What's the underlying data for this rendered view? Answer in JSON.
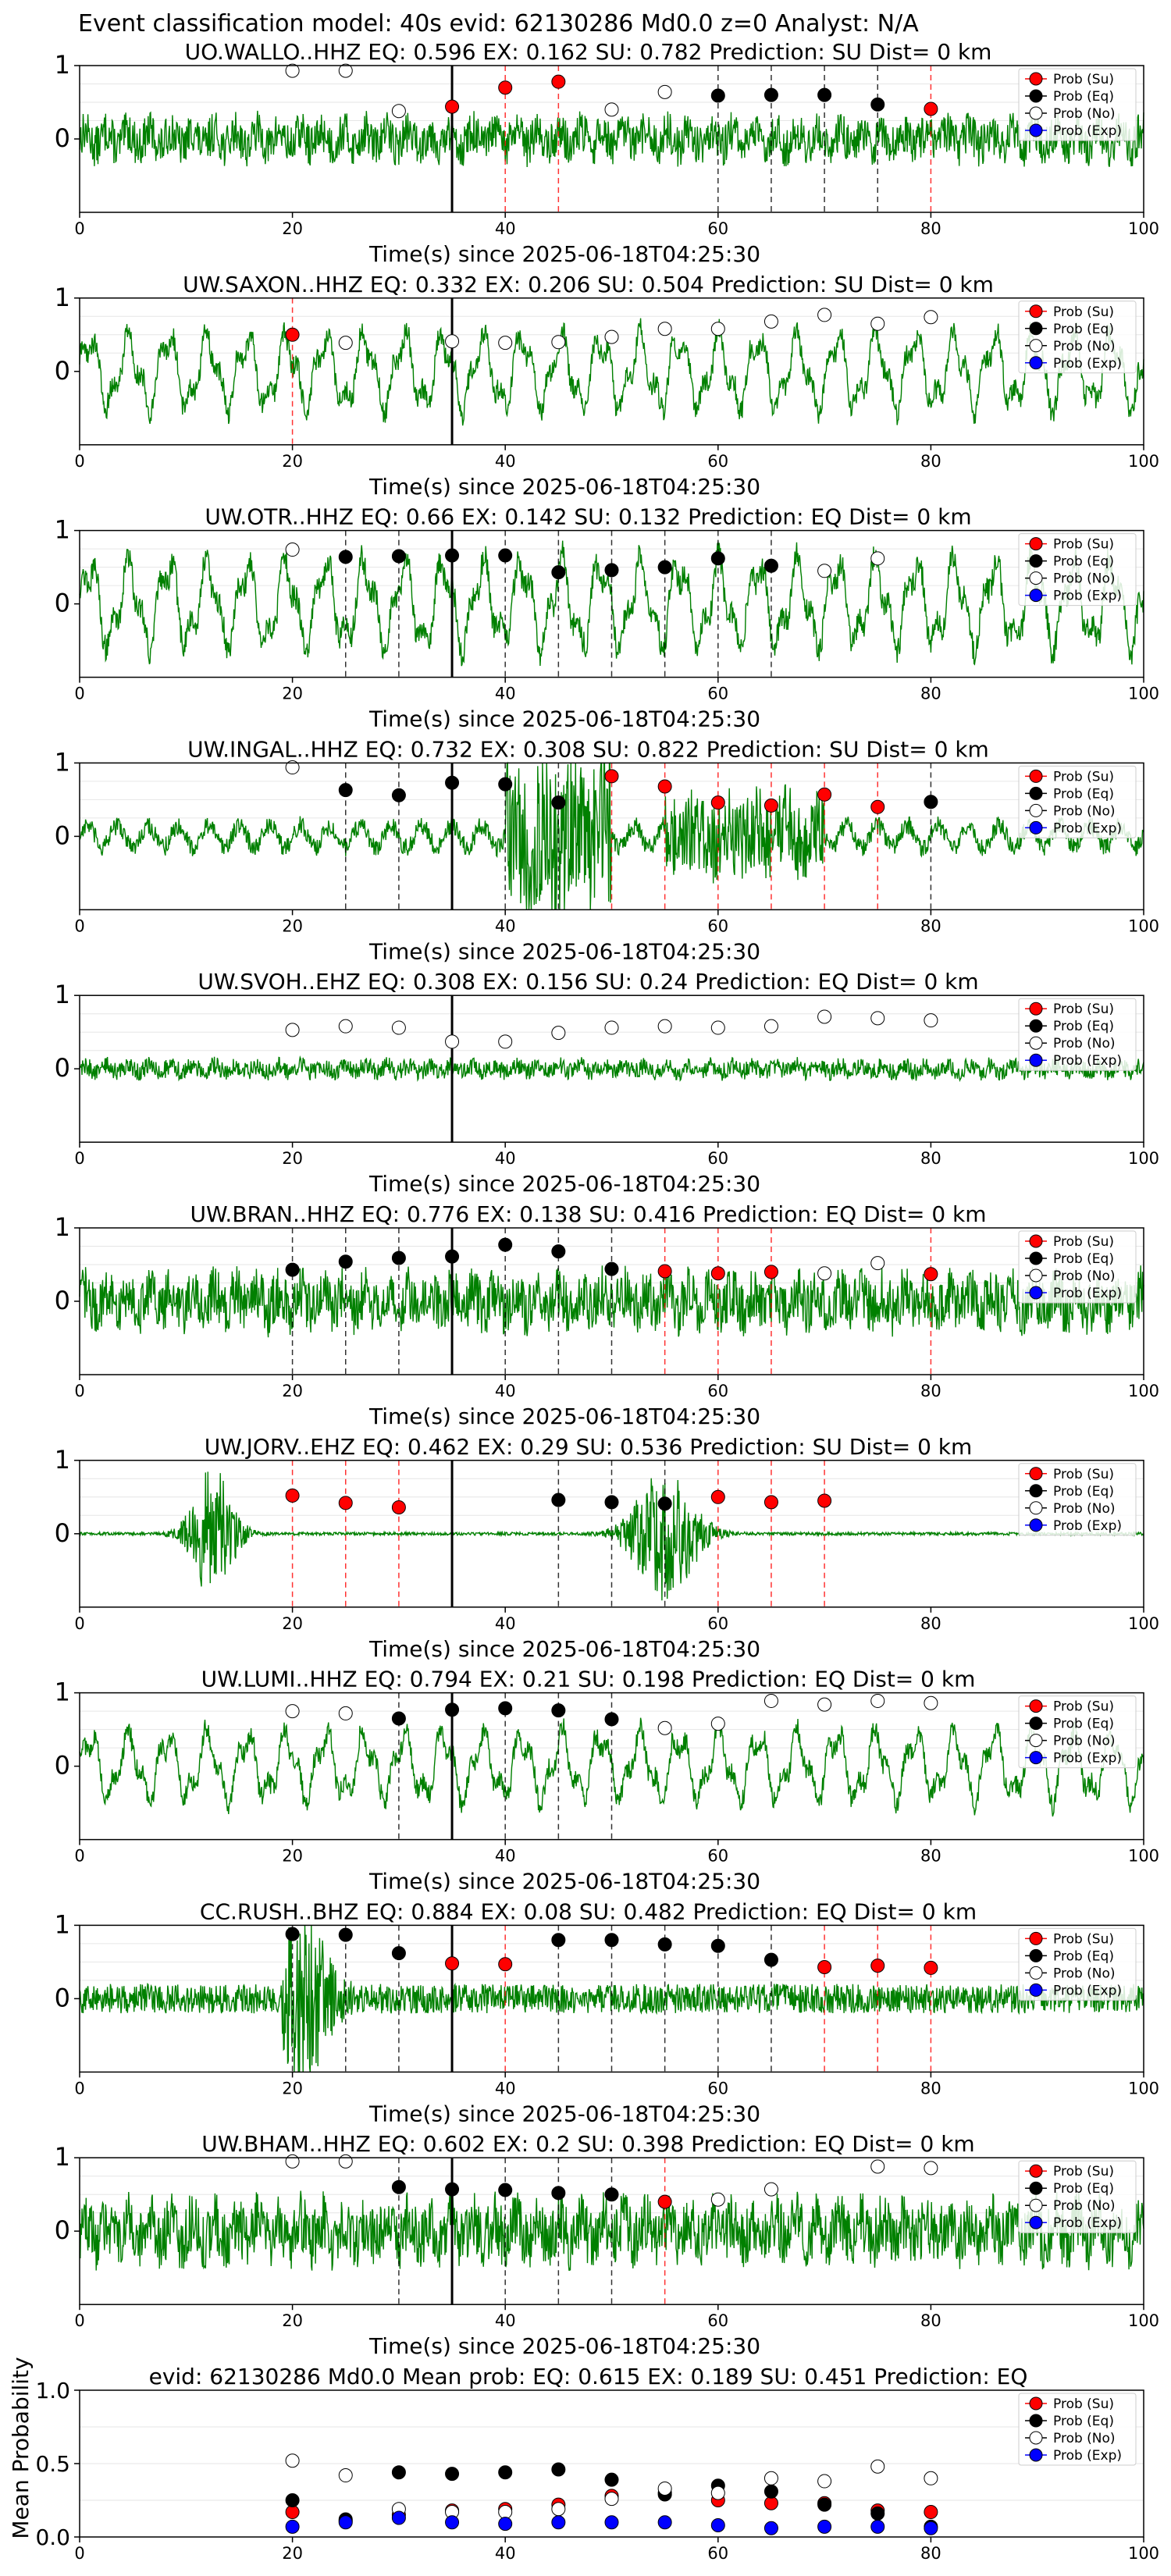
{
  "figure_title": "Event classification model: 40s evid: 62130286 Md0.0 z=0 Analyst: N/A",
  "legend": [
    "Prob (Su)",
    "Prob (Eq)",
    "Prob (No)",
    "Prob (Exp)"
  ],
  "colors": {
    "su": "#ff0000",
    "eq": "#000000",
    "no": "#ffffff",
    "exp": "#0000ff",
    "trace": "#008000",
    "arrival": "#000000"
  },
  "chart_data": [
    {
      "type": "scatter",
      "title": "UO.WALLO..HHZ   EQ: 0.596  EX: 0.162  SU: 0.782   Prediction: SU    Dist= 0 km",
      "xlabel": "Time(s) since 2025-06-18T04:25:30",
      "ylabel": "",
      "xlim": [
        0,
        100
      ],
      "ylim": [
        -1,
        1
      ],
      "xticks": [
        "0",
        "20",
        "40",
        "60",
        "80",
        "100"
      ],
      "yticks": [
        "1",
        "0"
      ],
      "arrival": 35,
      "points": [
        {
          "x": 20,
          "y": 0.93,
          "cls": "no"
        },
        {
          "x": 25,
          "y": 0.93,
          "cls": "no"
        },
        {
          "x": 30,
          "y": 0.38,
          "cls": "no"
        },
        {
          "x": 35,
          "y": 0.44,
          "cls": "su"
        },
        {
          "x": 40,
          "y": 0.7,
          "cls": "su"
        },
        {
          "x": 45,
          "y": 0.78,
          "cls": "su"
        },
        {
          "x": 50,
          "y": 0.4,
          "cls": "no"
        },
        {
          "x": 55,
          "y": 0.64,
          "cls": "no"
        },
        {
          "x": 60,
          "y": 0.59,
          "cls": "eq"
        },
        {
          "x": 65,
          "y": 0.6,
          "cls": "eq"
        },
        {
          "x": 70,
          "y": 0.6,
          "cls": "eq"
        },
        {
          "x": 75,
          "y": 0.47,
          "cls": "eq"
        },
        {
          "x": 80,
          "y": 0.41,
          "cls": "su"
        }
      ],
      "trace": {
        "style": "noise",
        "amplitude": 0.35
      }
    },
    {
      "type": "scatter",
      "title": "UW.SAXON..HHZ   EQ: 0.332  EX: 0.206  SU: 0.504   Prediction: SU    Dist= 0 km",
      "xlabel": "Time(s) since 2025-06-18T04:25:30",
      "ylabel": "",
      "xlim": [
        0,
        100
      ],
      "ylim": [
        -1,
        1
      ],
      "xticks": [
        "0",
        "20",
        "40",
        "60",
        "80",
        "100"
      ],
      "yticks": [
        "1",
        "0"
      ],
      "arrival": 35,
      "points": [
        {
          "x": 20,
          "y": 0.5,
          "cls": "su"
        },
        {
          "x": 25,
          "y": 0.39,
          "cls": "no"
        },
        {
          "x": 35,
          "y": 0.41,
          "cls": "no"
        },
        {
          "x": 40,
          "y": 0.39,
          "cls": "no"
        },
        {
          "x": 45,
          "y": 0.4,
          "cls": "no"
        },
        {
          "x": 50,
          "y": 0.47,
          "cls": "no"
        },
        {
          "x": 55,
          "y": 0.58,
          "cls": "no"
        },
        {
          "x": 60,
          "y": 0.58,
          "cls": "no"
        },
        {
          "x": 65,
          "y": 0.68,
          "cls": "no"
        },
        {
          "x": 70,
          "y": 0.77,
          "cls": "no"
        },
        {
          "x": 75,
          "y": 0.65,
          "cls": "no"
        },
        {
          "x": 80,
          "y": 0.74,
          "cls": "no"
        }
      ],
      "trace": {
        "style": "wave",
        "amplitude": 0.6
      }
    },
    {
      "type": "scatter",
      "title": "UW.OTR..HHZ   EQ: 0.66  EX: 0.142  SU: 0.132   Prediction: EQ    Dist= 0 km",
      "xlabel": "Time(s) since 2025-06-18T04:25:30",
      "ylabel": "",
      "xlim": [
        0,
        100
      ],
      "ylim": [
        -1,
        1
      ],
      "xticks": [
        "0",
        "20",
        "40",
        "60",
        "80",
        "100"
      ],
      "yticks": [
        "1",
        "0"
      ],
      "arrival": 35,
      "points": [
        {
          "x": 20,
          "y": 0.74,
          "cls": "no"
        },
        {
          "x": 25,
          "y": 0.64,
          "cls": "eq"
        },
        {
          "x": 30,
          "y": 0.65,
          "cls": "eq"
        },
        {
          "x": 35,
          "y": 0.66,
          "cls": "eq"
        },
        {
          "x": 40,
          "y": 0.66,
          "cls": "eq"
        },
        {
          "x": 45,
          "y": 0.43,
          "cls": "eq"
        },
        {
          "x": 50,
          "y": 0.46,
          "cls": "eq"
        },
        {
          "x": 55,
          "y": 0.5,
          "cls": "eq"
        },
        {
          "x": 60,
          "y": 0.62,
          "cls": "eq"
        },
        {
          "x": 65,
          "y": 0.52,
          "cls": "eq"
        },
        {
          "x": 70,
          "y": 0.45,
          "cls": "no"
        },
        {
          "x": 75,
          "y": 0.62,
          "cls": "no"
        }
      ],
      "trace": {
        "style": "wave",
        "amplitude": 0.7
      }
    },
    {
      "type": "scatter",
      "title": "UW.INGAL..HHZ   EQ: 0.732  EX: 0.308  SU: 0.822   Prediction: SU    Dist= 0 km",
      "xlabel": "Time(s) since 2025-06-18T04:25:30",
      "ylabel": "",
      "xlim": [
        0,
        100
      ],
      "ylim": [
        -1,
        1
      ],
      "xticks": [
        "0",
        "20",
        "40",
        "60",
        "80",
        "100"
      ],
      "yticks": [
        "1",
        "0"
      ],
      "arrival": 35,
      "points": [
        {
          "x": 20,
          "y": 0.94,
          "cls": "no"
        },
        {
          "x": 25,
          "y": 0.63,
          "cls": "eq"
        },
        {
          "x": 30,
          "y": 0.56,
          "cls": "eq"
        },
        {
          "x": 35,
          "y": 0.73,
          "cls": "eq"
        },
        {
          "x": 40,
          "y": 0.71,
          "cls": "eq"
        },
        {
          "x": 45,
          "y": 0.46,
          "cls": "eq"
        },
        {
          "x": 50,
          "y": 0.82,
          "cls": "su"
        },
        {
          "x": 55,
          "y": 0.68,
          "cls": "su"
        },
        {
          "x": 60,
          "y": 0.46,
          "cls": "su"
        },
        {
          "x": 65,
          "y": 0.42,
          "cls": "su"
        },
        {
          "x": 70,
          "y": 0.57,
          "cls": "su"
        },
        {
          "x": 75,
          "y": 0.4,
          "cls": "su"
        },
        {
          "x": 80,
          "y": 0.47,
          "cls": "eq"
        }
      ],
      "trace": {
        "style": "bursts",
        "amplitude": 0.25
      }
    },
    {
      "type": "scatter",
      "title": "UW.SVOH..EHZ   EQ: 0.308  EX: 0.156  SU: 0.24   Prediction: EQ    Dist= 0 km",
      "xlabel": "Time(s) since 2025-06-18T04:25:30",
      "ylabel": "",
      "xlim": [
        0,
        100
      ],
      "ylim": [
        -1,
        1
      ],
      "xticks": [
        "0",
        "20",
        "40",
        "60",
        "80",
        "100"
      ],
      "yticks": [
        "1",
        "0"
      ],
      "arrival": 35,
      "points": [
        {
          "x": 20,
          "y": 0.53,
          "cls": "no"
        },
        {
          "x": 25,
          "y": 0.58,
          "cls": "no"
        },
        {
          "x": 30,
          "y": 0.56,
          "cls": "no"
        },
        {
          "x": 35,
          "y": 0.37,
          "cls": "no"
        },
        {
          "x": 40,
          "y": 0.37,
          "cls": "no"
        },
        {
          "x": 45,
          "y": 0.49,
          "cls": "no"
        },
        {
          "x": 50,
          "y": 0.56,
          "cls": "no"
        },
        {
          "x": 55,
          "y": 0.58,
          "cls": "no"
        },
        {
          "x": 60,
          "y": 0.56,
          "cls": "no"
        },
        {
          "x": 65,
          "y": 0.58,
          "cls": "no"
        },
        {
          "x": 70,
          "y": 0.71,
          "cls": "no"
        },
        {
          "x": 75,
          "y": 0.69,
          "cls": "no"
        },
        {
          "x": 80,
          "y": 0.66,
          "cls": "no"
        }
      ],
      "trace": {
        "style": "noise",
        "amplitude": 0.15
      }
    },
    {
      "type": "scatter",
      "title": "UW.BRAN..HHZ   EQ: 0.776  EX: 0.138  SU: 0.416   Prediction: EQ    Dist= 0 km",
      "xlabel": "Time(s) since 2025-06-18T04:25:30",
      "ylabel": "",
      "xlim": [
        0,
        100
      ],
      "ylim": [
        -1,
        1
      ],
      "xticks": [
        "0",
        "20",
        "40",
        "60",
        "80",
        "100"
      ],
      "yticks": [
        "1",
        "0"
      ],
      "arrival": 35,
      "points": [
        {
          "x": 20,
          "y": 0.43,
          "cls": "eq"
        },
        {
          "x": 25,
          "y": 0.54,
          "cls": "eq"
        },
        {
          "x": 30,
          "y": 0.59,
          "cls": "eq"
        },
        {
          "x": 35,
          "y": 0.61,
          "cls": "eq"
        },
        {
          "x": 40,
          "y": 0.77,
          "cls": "eq"
        },
        {
          "x": 45,
          "y": 0.68,
          "cls": "eq"
        },
        {
          "x": 50,
          "y": 0.44,
          "cls": "eq"
        },
        {
          "x": 55,
          "y": 0.41,
          "cls": "su"
        },
        {
          "x": 60,
          "y": 0.38,
          "cls": "su"
        },
        {
          "x": 65,
          "y": 0.4,
          "cls": "su"
        },
        {
          "x": 70,
          "y": 0.38,
          "cls": "no"
        },
        {
          "x": 75,
          "y": 0.52,
          "cls": "no"
        },
        {
          "x": 80,
          "y": 0.37,
          "cls": "su"
        }
      ],
      "trace": {
        "style": "noise",
        "amplitude": 0.45
      }
    },
    {
      "type": "scatter",
      "title": "UW.JORV..EHZ   EQ: 0.462  EX: 0.29  SU: 0.536   Prediction: SU    Dist= 0 km",
      "xlabel": "Time(s) since 2025-06-18T04:25:30",
      "ylabel": "",
      "xlim": [
        0,
        100
      ],
      "ylim": [
        -1,
        1
      ],
      "xticks": [
        "0",
        "20",
        "40",
        "60",
        "80",
        "100"
      ],
      "yticks": [
        "1",
        "0"
      ],
      "arrival": 35,
      "points": [
        {
          "x": 20,
          "y": 0.52,
          "cls": "su"
        },
        {
          "x": 25,
          "y": 0.42,
          "cls": "su"
        },
        {
          "x": 30,
          "y": 0.36,
          "cls": "su"
        },
        {
          "x": 45,
          "y": 0.46,
          "cls": "eq"
        },
        {
          "x": 50,
          "y": 0.43,
          "cls": "eq"
        },
        {
          "x": 55,
          "y": 0.41,
          "cls": "eq"
        },
        {
          "x": 60,
          "y": 0.5,
          "cls": "su"
        },
        {
          "x": 65,
          "y": 0.43,
          "cls": "su"
        },
        {
          "x": 70,
          "y": 0.45,
          "cls": "su"
        }
      ],
      "trace": {
        "style": "events",
        "amplitude": 0.9
      }
    },
    {
      "type": "scatter",
      "title": "UW.LUMI..HHZ   EQ: 0.794  EX: 0.21  SU: 0.198   Prediction: EQ    Dist= 0 km",
      "xlabel": "Time(s) since 2025-06-18T04:25:30",
      "ylabel": "",
      "xlim": [
        0,
        100
      ],
      "ylim": [
        -1,
        1
      ],
      "xticks": [
        "0",
        "20",
        "40",
        "60",
        "80",
        "100"
      ],
      "yticks": [
        "1",
        "0"
      ],
      "arrival": 35,
      "points": [
        {
          "x": 20,
          "y": 0.75,
          "cls": "no"
        },
        {
          "x": 25,
          "y": 0.72,
          "cls": "no"
        },
        {
          "x": 30,
          "y": 0.65,
          "cls": "eq"
        },
        {
          "x": 35,
          "y": 0.77,
          "cls": "eq"
        },
        {
          "x": 40,
          "y": 0.79,
          "cls": "eq"
        },
        {
          "x": 45,
          "y": 0.76,
          "cls": "eq"
        },
        {
          "x": 50,
          "y": 0.64,
          "cls": "eq"
        },
        {
          "x": 55,
          "y": 0.52,
          "cls": "no"
        },
        {
          "x": 60,
          "y": 0.58,
          "cls": "no"
        },
        {
          "x": 65,
          "y": 0.89,
          "cls": "no"
        },
        {
          "x": 70,
          "y": 0.84,
          "cls": "no"
        },
        {
          "x": 75,
          "y": 0.89,
          "cls": "no"
        },
        {
          "x": 80,
          "y": 0.86,
          "cls": "no"
        }
      ],
      "trace": {
        "style": "wave",
        "amplitude": 0.55
      }
    },
    {
      "type": "scatter",
      "title": "CC.RUSH..BHZ   EQ: 0.884  EX: 0.08  SU: 0.482   Prediction: EQ    Dist= 0 km",
      "xlabel": "Time(s) since 2025-06-18T04:25:30",
      "ylabel": "",
      "xlim": [
        0,
        100
      ],
      "ylim": [
        -1,
        1
      ],
      "xticks": [
        "0",
        "20",
        "40",
        "60",
        "80",
        "100"
      ],
      "yticks": [
        "1",
        "0"
      ],
      "arrival": 35,
      "points": [
        {
          "x": 20,
          "y": 0.88,
          "cls": "eq"
        },
        {
          "x": 25,
          "y": 0.87,
          "cls": "eq"
        },
        {
          "x": 30,
          "y": 0.62,
          "cls": "eq"
        },
        {
          "x": 35,
          "y": 0.48,
          "cls": "su"
        },
        {
          "x": 40,
          "y": 0.47,
          "cls": "su"
        },
        {
          "x": 45,
          "y": 0.8,
          "cls": "eq"
        },
        {
          "x": 50,
          "y": 0.8,
          "cls": "eq"
        },
        {
          "x": 55,
          "y": 0.74,
          "cls": "eq"
        },
        {
          "x": 60,
          "y": 0.72,
          "cls": "eq"
        },
        {
          "x": 65,
          "y": 0.53,
          "cls": "eq"
        },
        {
          "x": 70,
          "y": 0.43,
          "cls": "su"
        },
        {
          "x": 75,
          "y": 0.45,
          "cls": "su"
        },
        {
          "x": 80,
          "y": 0.42,
          "cls": "su"
        }
      ],
      "trace": {
        "style": "spike",
        "amplitude": 0.2
      }
    },
    {
      "type": "scatter",
      "title": "UW.BHAM..HHZ   EQ: 0.602  EX: 0.2  SU: 0.398   Prediction: EQ    Dist= 0 km",
      "xlabel": "Time(s) since 2025-06-18T04:25:30",
      "ylabel": "",
      "xlim": [
        0,
        100
      ],
      "ylim": [
        -1,
        1
      ],
      "xticks": [
        "0",
        "20",
        "40",
        "60",
        "80",
        "100"
      ],
      "yticks": [
        "1",
        "0"
      ],
      "arrival": 35,
      "points": [
        {
          "x": 20,
          "y": 0.95,
          "cls": "no"
        },
        {
          "x": 25,
          "y": 0.95,
          "cls": "no"
        },
        {
          "x": 30,
          "y": 0.6,
          "cls": "eq"
        },
        {
          "x": 35,
          "y": 0.57,
          "cls": "eq"
        },
        {
          "x": 40,
          "y": 0.56,
          "cls": "eq"
        },
        {
          "x": 45,
          "y": 0.52,
          "cls": "eq"
        },
        {
          "x": 50,
          "y": 0.5,
          "cls": "eq"
        },
        {
          "x": 55,
          "y": 0.4,
          "cls": "su"
        },
        {
          "x": 60,
          "y": 0.43,
          "cls": "no"
        },
        {
          "x": 65,
          "y": 0.57,
          "cls": "no"
        },
        {
          "x": 75,
          "y": 0.88,
          "cls": "no"
        },
        {
          "x": 80,
          "y": 0.86,
          "cls": "no"
        }
      ],
      "trace": {
        "style": "noise",
        "amplitude": 0.5
      }
    },
    {
      "type": "scatter",
      "title": "evid: 62130286  Md0.0   Mean prob:   EQ: 0.615  EX: 0.189  SU: 0.451   Prediction: EQ",
      "xlabel": "",
      "ylabel": "Mean Probability",
      "xlim": [
        0,
        100
      ],
      "ylim": [
        0,
        1
      ],
      "xticks": [
        "0",
        "20",
        "40",
        "60",
        "80",
        "100"
      ],
      "yticks": [
        "1.0",
        "0.5",
        "0.0"
      ],
      "series": [
        {
          "name": "Prob (Su)",
          "cls": "su",
          "x": [
            20,
            25,
            30,
            35,
            40,
            45,
            50,
            55,
            60,
            65,
            70,
            75,
            80
          ],
          "y": [
            0.17,
            0.11,
            0.15,
            0.18,
            0.19,
            0.22,
            0.28,
            0.3,
            0.25,
            0.23,
            0.23,
            0.18,
            0.17
          ]
        },
        {
          "name": "Prob (Eq)",
          "cls": "eq",
          "x": [
            20,
            25,
            30,
            35,
            40,
            45,
            50,
            55,
            60,
            65,
            70,
            75,
            80
          ],
          "y": [
            0.25,
            0.12,
            0.44,
            0.43,
            0.44,
            0.46,
            0.39,
            0.29,
            0.35,
            0.31,
            0.22,
            0.16,
            0.07
          ]
        },
        {
          "name": "Prob (No)",
          "cls": "no",
          "x": [
            20,
            25,
            30,
            35,
            40,
            45,
            50,
            55,
            60,
            65,
            70,
            75,
            80
          ],
          "y": [
            0.52,
            0.42,
            0.19,
            0.17,
            0.17,
            0.19,
            0.26,
            0.33,
            0.3,
            0.4,
            0.38,
            0.48,
            0.4
          ]
        },
        {
          "name": "Prob (Exp)",
          "cls": "exp",
          "x": [
            20,
            25,
            30,
            35,
            40,
            45,
            50,
            55,
            60,
            65,
            70,
            75,
            80
          ],
          "y": [
            0.07,
            0.1,
            0.13,
            0.1,
            0.09,
            0.1,
            0.1,
            0.1,
            0.08,
            0.06,
            0.07,
            0.07,
            0.06
          ]
        }
      ]
    }
  ]
}
